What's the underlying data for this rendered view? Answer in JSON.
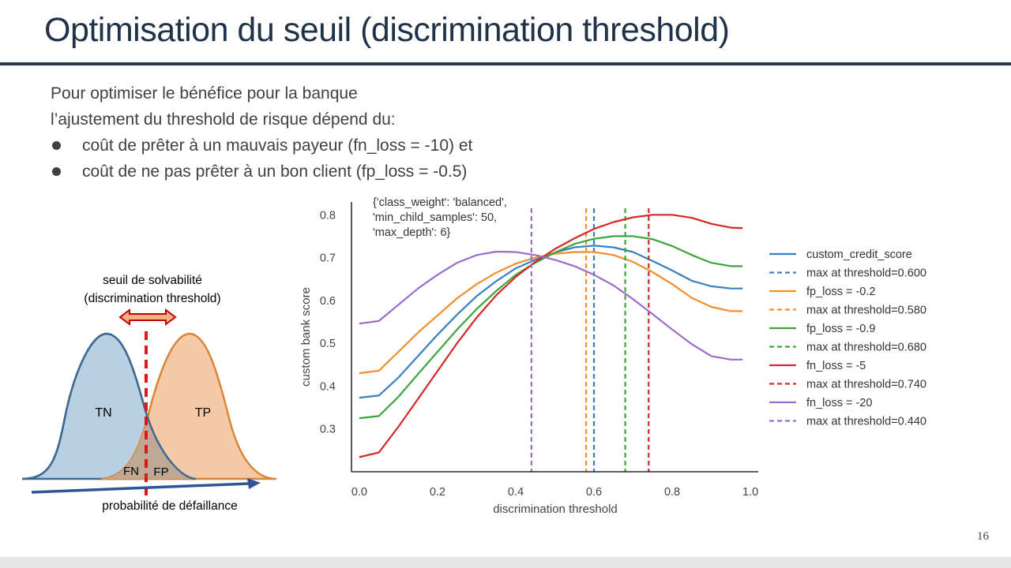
{
  "slide": {
    "title": "Optimisation du seuil (discrimination threshold)",
    "intro_lines": [
      "Pour optimiser le bénéfice pour la banque",
      "l’ajustement du threshold de risque dépend du:"
    ],
    "bullets": [
      "coût de prêter à un mauvais payeur (fn_loss = -10) et",
      "coût de ne pas prêter à un bon client (fp_loss = -0.5)"
    ],
    "page_number": "16"
  },
  "diagram": {
    "threshold_label_line1": "seuil de solvabilité",
    "threshold_label_line2": "(discrimination threshold)",
    "tn_label": "TN",
    "tp_label": "TP",
    "fn_label": "FN",
    "fp_label": "FP",
    "axis_label": "probabilité de défaillance",
    "colors": {
      "negative": "#b9cfe2",
      "negative_stroke": "#3e6a92",
      "positive": "#f5c9a5",
      "positive_stroke": "#d9863a",
      "overlap": "#bda995",
      "threshold": "#e5141b",
      "axis_arrow": "#2f5597"
    }
  },
  "chart_data": {
    "type": "line",
    "annotation": [
      "{'class_weight': 'balanced',",
      "'min_child_samples': 50,",
      "'max_depth': 6}"
    ],
    "xlabel": "discrimination threshold",
    "ylabel": "custom bank score",
    "xlim": [
      -0.02,
      1.02
    ],
    "ylim": [
      0.2,
      0.83
    ],
    "x_ticks": [
      0.0,
      0.2,
      0.4,
      0.6,
      0.8,
      1.0
    ],
    "x_tick_labels": [
      "0.0",
      "0.2",
      "0.4",
      "0.6",
      "0.8",
      "1.0"
    ],
    "y_ticks": [
      0.3,
      0.4,
      0.5,
      0.6,
      0.7,
      0.8
    ],
    "y_tick_labels": [
      "0.3",
      "0.4",
      "0.5",
      "0.6",
      "0.7",
      "0.8"
    ],
    "grid": false,
    "legend_position": "right",
    "x": [
      0.0,
      0.05,
      0.1,
      0.15,
      0.2,
      0.25,
      0.3,
      0.35,
      0.4,
      0.45,
      0.5,
      0.55,
      0.6,
      0.65,
      0.7,
      0.75,
      0.8,
      0.85,
      0.9,
      0.95,
      0.98
    ],
    "series": [
      {
        "name": "custom_credit_score",
        "color": "#3a7fc2",
        "threshold_label": "max at threshold=0.600",
        "max_threshold": 0.6,
        "values": [
          0.373,
          0.378,
          0.42,
          0.47,
          0.52,
          0.567,
          0.61,
          0.645,
          0.675,
          0.695,
          0.712,
          0.724,
          0.728,
          0.724,
          0.713,
          0.692,
          0.67,
          0.646,
          0.633,
          0.628,
          0.628
        ]
      },
      {
        "name": "fp_loss = -0.2",
        "color": "#f28e2b",
        "threshold_label": "max at threshold=0.580",
        "max_threshold": 0.58,
        "values": [
          0.43,
          0.436,
          0.48,
          0.525,
          0.565,
          0.605,
          0.638,
          0.665,
          0.686,
          0.7,
          0.709,
          0.713,
          0.713,
          0.706,
          0.69,
          0.666,
          0.638,
          0.606,
          0.585,
          0.575,
          0.575
        ]
      },
      {
        "name": "fp_loss = -0.9",
        "color": "#3aa63a",
        "threshold_label": "max at threshold=0.680",
        "max_threshold": 0.68,
        "values": [
          0.325,
          0.33,
          0.375,
          0.428,
          0.48,
          0.532,
          0.58,
          0.622,
          0.66,
          0.688,
          0.712,
          0.732,
          0.744,
          0.75,
          0.75,
          0.743,
          0.727,
          0.706,
          0.688,
          0.68,
          0.68
        ]
      },
      {
        "name": "fn_loss = -5",
        "color": "#d62728",
        "threshold_label": "max at threshold=0.740",
        "max_threshold": 0.74,
        "values": [
          0.234,
          0.245,
          0.305,
          0.37,
          0.435,
          0.5,
          0.56,
          0.612,
          0.655,
          0.69,
          0.72,
          0.745,
          0.767,
          0.783,
          0.794,
          0.8,
          0.8,
          0.793,
          0.779,
          0.77,
          0.769
        ]
      },
      {
        "name": "fn_loss = -20",
        "color": "#9b6cc9",
        "threshold_label": "max at threshold=0.440",
        "max_threshold": 0.44,
        "values": [
          0.546,
          0.552,
          0.59,
          0.628,
          0.66,
          0.688,
          0.706,
          0.714,
          0.713,
          0.706,
          0.695,
          0.68,
          0.66,
          0.635,
          0.603,
          0.568,
          0.532,
          0.498,
          0.47,
          0.462,
          0.462
        ]
      }
    ]
  }
}
